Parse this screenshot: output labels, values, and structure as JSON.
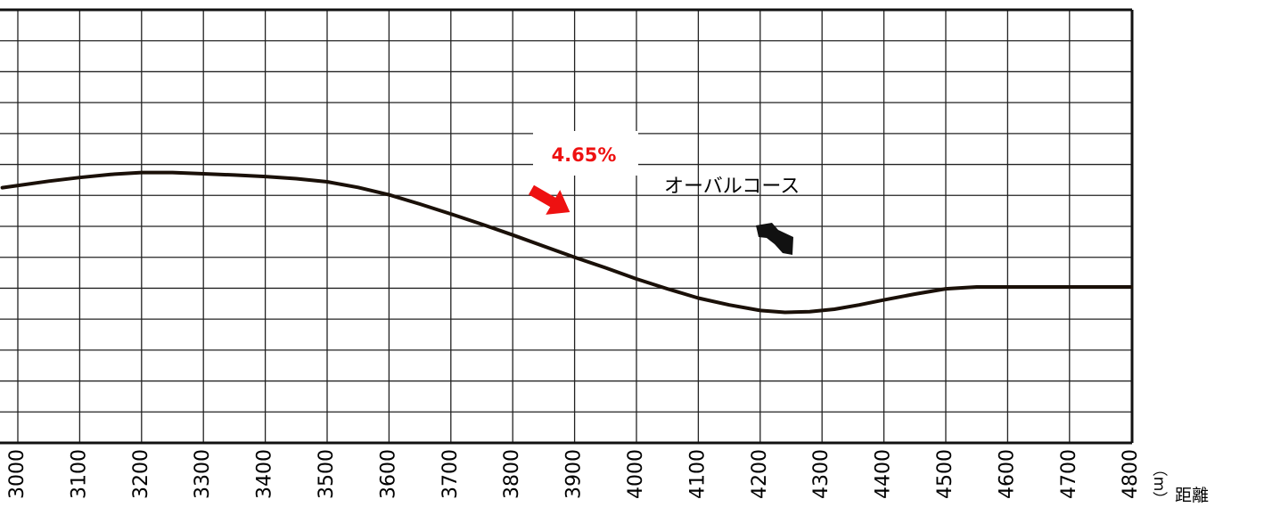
{
  "chart_data": {
    "type": "line",
    "title": "",
    "xlabel": "距離",
    "xunit": "（m）",
    "ylabel": "",
    "xlim": [
      2975,
      4800
    ],
    "ylim": [
      0,
      14
    ],
    "grid": true,
    "x_ticks": [
      3000,
      3100,
      3200,
      3300,
      3400,
      3500,
      3600,
      3700,
      3800,
      3900,
      4000,
      4100,
      4200,
      4300,
      4400,
      4500,
      4600,
      4700,
      4800
    ],
    "x_tick_labels": [
      "3000",
      "3100",
      "3200",
      "3300",
      "3400",
      "3500",
      "3600",
      "3700",
      "3800",
      "3900",
      "4000",
      "4100",
      "4200",
      "4300",
      "4400",
      "4500",
      "4600",
      "4700",
      "4800"
    ],
    "series": [
      {
        "x": [
          2975,
          3050,
          3100,
          3150,
          3200,
          3250,
          3300,
          3350,
          3400,
          3450,
          3500,
          3550,
          3600,
          3650,
          3700,
          3750,
          3800,
          3850,
          3900,
          3950,
          4000,
          4050,
          4100,
          4150,
          4200,
          4240,
          4280,
          4320,
          4360,
          4400,
          4450,
          4500,
          4550,
          4600,
          4650,
          4700,
          4750,
          4800
        ],
        "values": [
          8.25,
          8.46,
          8.58,
          8.68,
          8.74,
          8.74,
          8.7,
          8.66,
          8.61,
          8.54,
          8.44,
          8.26,
          8.02,
          7.72,
          7.4,
          7.07,
          6.72,
          6.36,
          6.0,
          5.66,
          5.3,
          4.98,
          4.68,
          4.46,
          4.28,
          4.22,
          4.24,
          4.32,
          4.46,
          4.62,
          4.81,
          4.98,
          5.04,
          5.04,
          5.04,
          5.04,
          5.04,
          5.04
        ]
      }
    ],
    "annotations": {
      "grade": "4.65%",
      "course": "オーバルコース"
    },
    "colors": {
      "line": "#1a1008",
      "grid": "#222222",
      "arrow": "#ee1111",
      "grade_text": "#ee1111"
    }
  }
}
